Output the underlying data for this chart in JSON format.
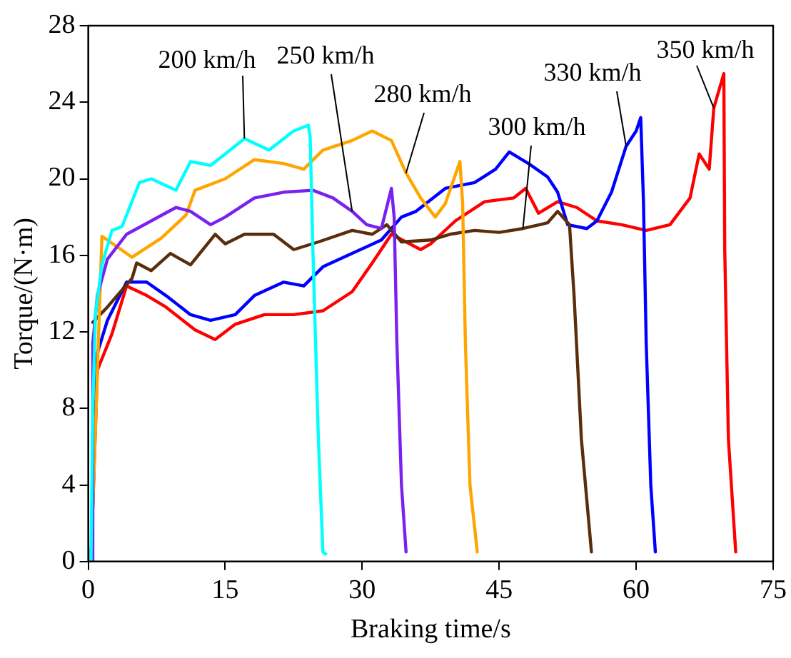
{
  "chart_data": {
    "type": "line",
    "xlabel": "Braking time/s",
    "ylabel": "Torque/(N·m)",
    "xlim": [
      0,
      75
    ],
    "xticks": [
      0,
      15,
      30,
      45,
      60,
      75
    ],
    "ylim": [
      0,
      28
    ],
    "yticks": [
      0,
      4,
      8,
      12,
      16,
      20,
      24,
      28
    ],
    "grid": false,
    "legend": false,
    "marker": "none",
    "line_style": "solid",
    "series": [
      {
        "name": "200 km/h",
        "color": "#00ffff",
        "x": [
          0.3,
          0.5,
          0.8,
          1.5,
          2.6,
          3.7,
          5.6,
          6.9,
          9.6,
          11.2,
          13.4,
          15,
          17.1,
          19.8,
          22.5,
          24.1,
          24.3,
          24.6,
          25.2,
          25.7,
          26
        ],
        "values": [
          0,
          8,
          13,
          15.5,
          17.3,
          17.5,
          19.8,
          20,
          19.4,
          20.9,
          20.7,
          21.3,
          22.1,
          21.5,
          22.5,
          22.8,
          22.2,
          16.3,
          6.4,
          0.5,
          0.4
        ]
      },
      {
        "name": "250 km/h",
        "color": "#7b20f0",
        "x": [
          0.4,
          0.5,
          1,
          2.1,
          4.2,
          6.9,
          9.6,
          11.2,
          13.4,
          15,
          18.2,
          21.4,
          24.6,
          26.8,
          28.9,
          30.5,
          32.1,
          33.2,
          33.5,
          33.8,
          34.3,
          34.8
        ],
        "values": [
          0,
          11.4,
          13.9,
          15.8,
          17.1,
          17.8,
          18.5,
          18.3,
          17.6,
          18,
          19,
          19.3,
          19.4,
          19,
          18.3,
          17.6,
          17.4,
          19.5,
          18,
          11.4,
          4,
          0.5
        ]
      },
      {
        "name": "280 km/h",
        "color": "#ffa500",
        "x": [
          0.3,
          1.5,
          4.8,
          8,
          10.7,
          11.7,
          15,
          18.2,
          21.4,
          23.6,
          25.7,
          28.9,
          31.1,
          33.2,
          34.8,
          36.4,
          38,
          39.1,
          40.7,
          41,
          41.3,
          41.8,
          42.6
        ],
        "values": [
          0,
          17,
          15.9,
          16.9,
          18.1,
          19.4,
          20,
          21,
          20.8,
          20.5,
          21.5,
          22,
          22.5,
          22,
          20.3,
          19,
          18,
          18.7,
          20.9,
          18.7,
          11.4,
          4,
          0.5
        ]
      },
      {
        "name": "300 km/h",
        "color": "#5a2d0c",
        "x": [
          0.5,
          2.1,
          4.8,
          5.3,
          6.9,
          9,
          11.2,
          13.9,
          15,
          17.1,
          20.3,
          22.5,
          25.2,
          28.9,
          31.1,
          32.7,
          34.3,
          37.5,
          39.6,
          42.3,
          45,
          47.6,
          50.3,
          51.4,
          52.7,
          53.2,
          54,
          55.1
        ],
        "values": [
          12.5,
          13.3,
          14.8,
          15.6,
          15.2,
          16.1,
          15.5,
          17.1,
          16.6,
          17.1,
          17.1,
          16.3,
          16.7,
          17.3,
          17.1,
          17.6,
          16.7,
          16.8,
          17.1,
          17.3,
          17.2,
          17.4,
          17.7,
          18.3,
          17.6,
          13.9,
          6.4,
          0.5
        ]
      },
      {
        "name": "330 km/h",
        "color": "#0000ff",
        "x": [
          0.3,
          1,
          2.1,
          4.2,
          6.4,
          8.5,
          11.2,
          13.4,
          16.1,
          18.2,
          21.4,
          23.6,
          25.7,
          28.9,
          32.1,
          34.3,
          35.9,
          39.1,
          42.3,
          44.6,
          46.1,
          48.2,
          50.3,
          51.4,
          52.5,
          54.6,
          55.7,
          57.3,
          58.9,
          60,
          60.5,
          60.8,
          61.1,
          61.6,
          62.1
        ],
        "values": [
          0,
          10.9,
          12.6,
          14.6,
          14.6,
          13.9,
          12.9,
          12.6,
          12.9,
          13.9,
          14.6,
          14.4,
          15.4,
          16.1,
          16.8,
          18,
          18.3,
          19.5,
          19.8,
          20.5,
          21.4,
          20.8,
          20.1,
          19.3,
          17.6,
          17.4,
          17.8,
          19.3,
          21.7,
          22.5,
          23.2,
          18.8,
          11.4,
          4,
          0.5
        ]
      },
      {
        "name": "350 km/h",
        "color": "#ff0000",
        "x": [
          0.3,
          1,
          2.6,
          4.2,
          6.4,
          8.5,
          11.7,
          13.9,
          16.1,
          19.3,
          22.5,
          25.7,
          28.9,
          31.1,
          33.2,
          36.4,
          37.5,
          40.2,
          43.4,
          46.6,
          47.9,
          49.3,
          51.4,
          53.5,
          55.7,
          58.4,
          61.1,
          63.7,
          65.9,
          66.9,
          68,
          68.5,
          69.6,
          69.7,
          70.1,
          70.9
        ],
        "values": [
          0,
          10,
          11.9,
          14.4,
          13.9,
          13.3,
          12.1,
          11.6,
          12.4,
          12.9,
          12.9,
          13.1,
          14.1,
          15.6,
          17.1,
          16.3,
          16.6,
          17.8,
          18.8,
          19,
          19.5,
          18.2,
          18.8,
          18.5,
          17.8,
          17.6,
          17.3,
          17.6,
          19,
          21.3,
          20.5,
          23.7,
          25.5,
          16.3,
          6.4,
          0.5
        ]
      }
    ]
  }
}
